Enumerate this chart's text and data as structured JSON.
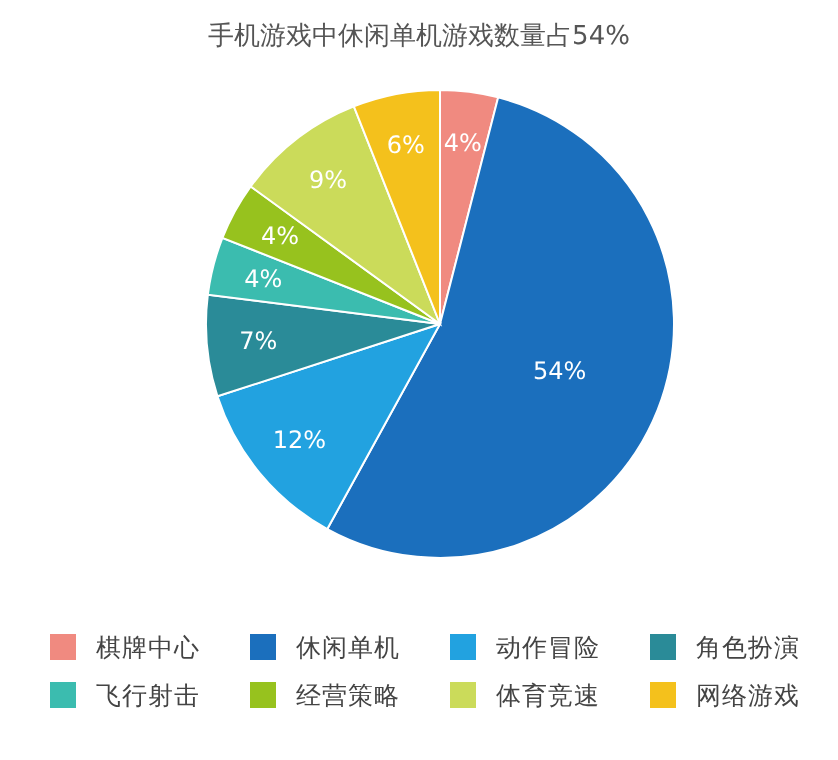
{
  "chart_data": {
    "type": "pie",
    "title": "手机游戏中休闲单机游戏数量占54%",
    "categories": [
      "棋牌中心",
      "休闲单机",
      "动作冒险",
      "角色扮演",
      "飞行射击",
      "经营策略",
      "体育竞速",
      "网络游戏"
    ],
    "values": [
      4,
      54,
      12,
      7,
      4,
      4,
      9,
      6
    ],
    "colors": [
      "#f08a80",
      "#1b6fbd",
      "#22a2e0",
      "#2a8b98",
      "#3bbcaf",
      "#97c21e",
      "#cbdb5a",
      "#f4c11c"
    ],
    "value_labels": [
      "4%",
      "54%",
      "12%",
      "7%",
      "4%",
      "4%",
      "9%",
      "6%"
    ],
    "legend": "bottom"
  }
}
